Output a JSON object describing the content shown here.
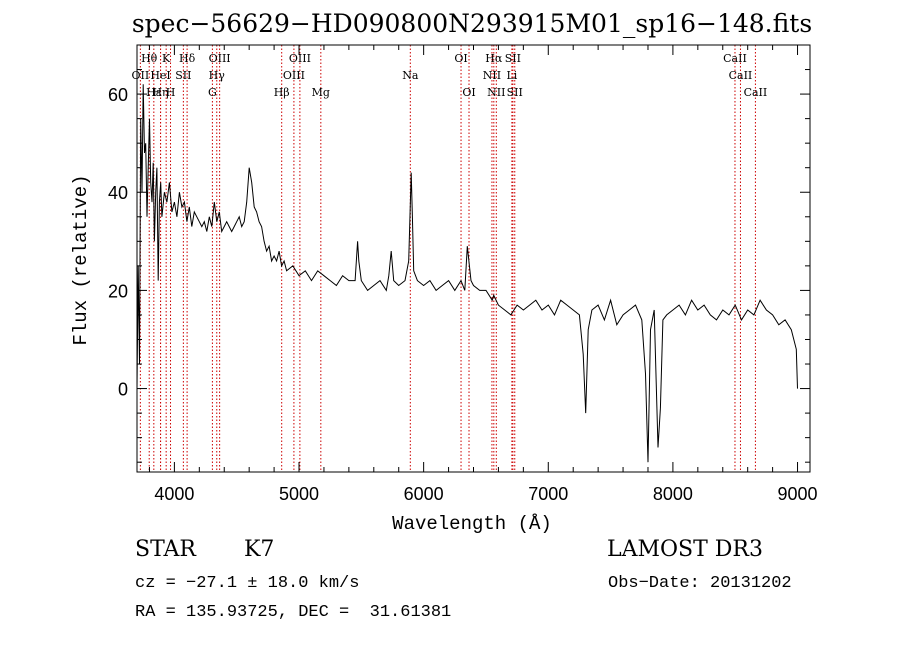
{
  "chart_data": {
    "type": "line",
    "title": "spec−56629−HD090800N293915M01_sp16−148.fits",
    "xlabel": "Wavelength (Å)",
    "ylabel": "Flux (relative)",
    "xlim": [
      3700,
      9100
    ],
    "ylim": [
      -17,
      70
    ],
    "xticks": [
      4000,
      5000,
      6000,
      7000,
      8000,
      9000
    ],
    "yticks": [
      0,
      20,
      40,
      60
    ],
    "grid": false,
    "line_color": "#000000",
    "marker_color": "#cc0000",
    "series": [
      {
        "x": [
          3700,
          3710,
          3720,
          3730,
          3740,
          3750,
          3760,
          3770,
          3780,
          3790,
          3800,
          3810,
          3820,
          3830,
          3840,
          3850,
          3860,
          3870,
          3880,
          3890,
          3900,
          3920,
          3940,
          3960,
          3980,
          4000,
          4020,
          4040,
          4060,
          4080,
          4100,
          4120,
          4140,
          4160,
          4180,
          4200,
          4220,
          4240,
          4260,
          4280,
          4300,
          4320,
          4340,
          4360,
          4380,
          4400,
          4420,
          4440,
          4460,
          4480,
          4500,
          4520,
          4540,
          4560,
          4580,
          4600,
          4620,
          4640,
          4660,
          4680,
          4700,
          4720,
          4740,
          4760,
          4780,
          4800,
          4820,
          4840,
          4860,
          4880,
          4900,
          4950,
          5000,
          5050,
          5100,
          5150,
          5200,
          5250,
          5300,
          5350,
          5400,
          5450,
          5470,
          5480,
          5500,
          5550,
          5600,
          5650,
          5700,
          5720,
          5740,
          5760,
          5800,
          5850,
          5880,
          5900,
          5910,
          5920,
          5950,
          6000,
          6050,
          6100,
          6150,
          6200,
          6250,
          6300,
          6330,
          6350,
          6380,
          6400,
          6450,
          6500,
          6550,
          6562,
          6600,
          6650,
          6700,
          6750,
          6800,
          6850,
          6900,
          6950,
          7000,
          7050,
          7100,
          7150,
          7200,
          7250,
          7280,
          7300,
          7320,
          7350,
          7400,
          7450,
          7500,
          7550,
          7600,
          7650,
          7700,
          7750,
          7780,
          7800,
          7820,
          7850,
          7880,
          7900,
          7920,
          7950,
          8000,
          8050,
          8100,
          8150,
          8200,
          8250,
          8300,
          8350,
          8400,
          8450,
          8500,
          8550,
          8600,
          8650,
          8700,
          8750,
          8800,
          8850,
          8900,
          8950,
          8990,
          9000
        ],
        "y": [
          0,
          25,
          5,
          55,
          40,
          62,
          48,
          50,
          35,
          45,
          55,
          42,
          38,
          46,
          30,
          40,
          45,
          22,
          38,
          42,
          35,
          40,
          38,
          42,
          36,
          38,
          35,
          40,
          37,
          38,
          34,
          37,
          33,
          36,
          35,
          34,
          33,
          34,
          32,
          35,
          33,
          38,
          34,
          36,
          32,
          33,
          34,
          33,
          32,
          33,
          34,
          35,
          33,
          34,
          38,
          45,
          42,
          37,
          36,
          34,
          33,
          30,
          28,
          29,
          26,
          27,
          26,
          28,
          25,
          26,
          24,
          25,
          23,
          24,
          22,
          24,
          23,
          22,
          21,
          23,
          22,
          22,
          30,
          26,
          22,
          20,
          21,
          22,
          20,
          23,
          28,
          22,
          21,
          22,
          26,
          44,
          35,
          24,
          22,
          21,
          22,
          20,
          21,
          22,
          20,
          22,
          20,
          29,
          22,
          21,
          20,
          20,
          18,
          19,
          17,
          16,
          15,
          17,
          16,
          17,
          18,
          16,
          17,
          15,
          18,
          17,
          16,
          15,
          7,
          -5,
          12,
          16,
          17,
          14,
          18,
          13,
          15,
          16,
          17,
          14,
          3,
          -15,
          12,
          16,
          -12,
          -4,
          14,
          15,
          16,
          17,
          15,
          18,
          16,
          17,
          15,
          14,
          16,
          15,
          17,
          14,
          16,
          15,
          18,
          16,
          15,
          13,
          14,
          12,
          8,
          0
        ]
      }
    ],
    "lines": {
      "top_row": [
        {
          "label": "Hθ",
          "x": 3798
        },
        {
          "label": "K",
          "x": 3934
        },
        {
          "label": "Hδ",
          "x": 4102
        },
        {
          "label": "OIII",
          "x": 4363
        },
        {
          "label": "OIII",
          "x": 5007
        },
        {
          "label": "OI",
          "x": 6300
        },
        {
          "label": "Hα",
          "x": 6563
        },
        {
          "label": "SII",
          "x": 6716
        },
        {
          "label": "CaII",
          "x": 8498
        }
      ],
      "mid_row": [
        {
          "label": "OII",
          "x": 3727
        },
        {
          "label": "HeI",
          "x": 3889
        },
        {
          "label": "SII",
          "x": 4072
        },
        {
          "label": "Hγ",
          "x": 4340
        },
        {
          "label": "OIII",
          "x": 4959
        },
        {
          "label": "Na",
          "x": 5893
        },
        {
          "label": "NII",
          "x": 6548
        },
        {
          "label": "Li",
          "x": 6708
        },
        {
          "label": "CaII",
          "x": 8542
        }
      ],
      "low_row": [
        {
          "label": "Hε",
          "x": 3835
        },
        {
          "label": "Hη",
          "x": 3889
        },
        {
          "label": "H",
          "x": 3969
        },
        {
          "label": "G",
          "x": 4305
        },
        {
          "label": "Hβ",
          "x": 4861
        },
        {
          "label": "Mg",
          "x": 5175
        },
        {
          "label": "OI",
          "x": 6364
        },
        {
          "label": "NII",
          "x": 6583
        },
        {
          "label": "SII",
          "x": 6731
        },
        {
          "label": "CaII",
          "x": 8662
        }
      ]
    }
  },
  "info": {
    "class_label": "STAR",
    "subclass_label": "K7",
    "survey_label": "LAMOST DR3",
    "cz_text": "cz = −27.1 ± 18.0 km/s",
    "obs_date_text": "Obs−Date: 20131202",
    "coords_text": "RA = 135.93725, DEC =  31.61381"
  }
}
